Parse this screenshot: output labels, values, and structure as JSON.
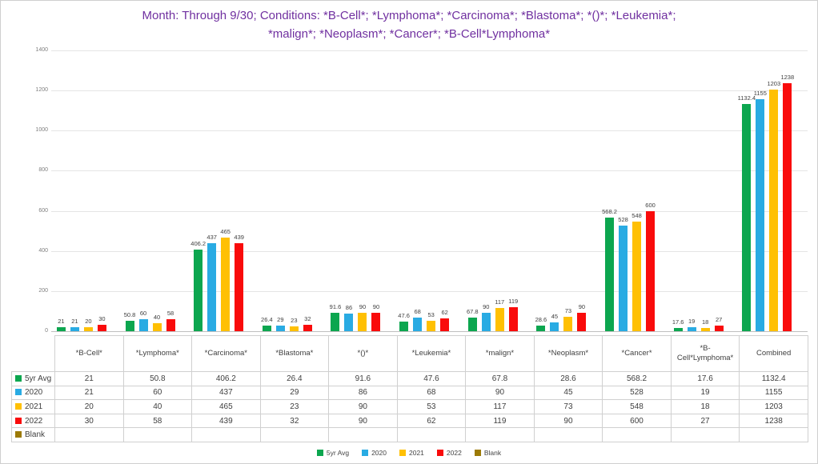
{
  "title": {
    "full": "Month: Through 9/30; Conditions: *B-Cell*; *Lymphoma*; *Carcinoma*; *Blastoma*; *()*; *Leukemia*; *malign*; *Neoplasm*; *Cancer*; *B-Cell*Lymphoma*",
    "line1": "Month: Through 9/30; Conditions: *B-Cell*; *Lymphoma*; *Carcinoma*; *Blastoma*; *()*; *Leukemia*;",
    "line2": "*malign*; *Neoplasm*; *Cancer*; *B-Cell*Lymphoma*",
    "color": "#7030A0"
  },
  "colors": {
    "grid": "#E4E4E4",
    "axis": "#BFBFBF",
    "tick_text": "#7F7F7F",
    "data_label_text": "#3E3E3E",
    "table_border": "#D0D0D0",
    "table_text": "#3F3F3F"
  },
  "chart_data": {
    "type": "bar",
    "title": "Month: Through 9/30; Conditions: *B-Cell*; *Lymphoma*; *Carcinoma*; *Blastoma*; *()*; *Leukemia*; *malign*; *Neoplasm*; *Cancer*; *B-Cell*Lymphoma*",
    "categories": [
      "*B-Cell*",
      "*Lymphoma*",
      "*Carcinoma*",
      "*Blastoma*",
      "*()*",
      "*Leukemia*",
      "*malign*",
      "*Neoplasm*",
      "*Cancer*",
      "*B-Cell*Lymphoma*",
      "Combined"
    ],
    "series": [
      {
        "name": "5yr Avg",
        "color": "#0CA64F",
        "values": [
          21,
          50.8,
          406.2,
          26.4,
          91.6,
          47.6,
          67.8,
          28.6,
          568.2,
          17.6,
          1132.4
        ]
      },
      {
        "name": "2020",
        "color": "#29ABE3",
        "values": [
          21,
          60,
          437,
          29,
          86,
          68,
          90,
          45,
          528,
          19,
          1155
        ]
      },
      {
        "name": "2021",
        "color": "#FFC003",
        "values": [
          20,
          40,
          465,
          23,
          90,
          53,
          117,
          73,
          548,
          18,
          1203
        ]
      },
      {
        "name": "2022",
        "color": "#F90B0B",
        "values": [
          30,
          58,
          439,
          32,
          90,
          62,
          119,
          90,
          600,
          27,
          1238
        ]
      },
      {
        "name": "Blank",
        "color": "#9C7A06",
        "values": [
          null,
          null,
          null,
          null,
          null,
          null,
          null,
          null,
          null,
          null,
          null
        ]
      }
    ],
    "xlabel": "",
    "ylabel": "",
    "ylim": [
      0,
      1400
    ],
    "yticks": [
      0,
      200,
      400,
      600,
      800,
      1000,
      1200,
      1400
    ],
    "grid": true,
    "data_labels": true,
    "legend_position": "bottom",
    "data_table_shown": true
  }
}
